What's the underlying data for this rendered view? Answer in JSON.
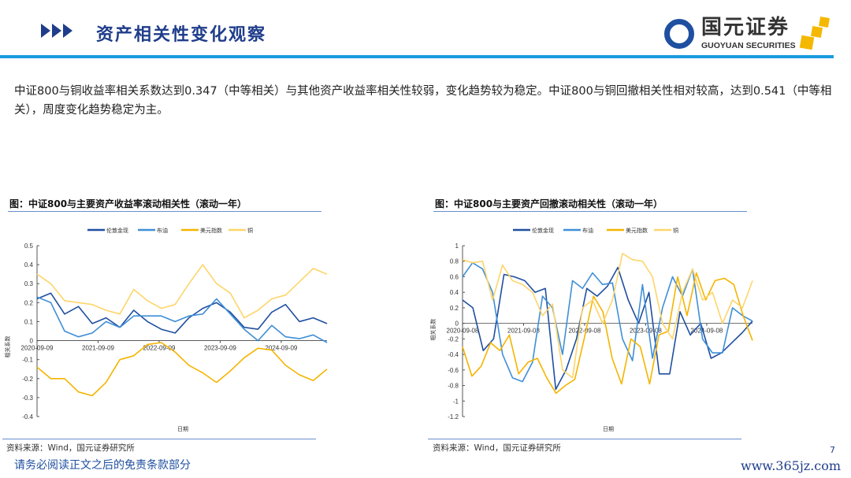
{
  "header": {
    "title": "资产相关性变化观察",
    "logo_cn": "国元证券",
    "logo_en": "GUOYUAN SECURITIES"
  },
  "summary": "中证800与铜收益率相关系数达到0.347（中等相关）与其他资产收益率相关性较弱，变化趋势较为稳定。中证800与铜回撤相关性相对较高，达到0.541（中等相关），周度变化趋势稳定为主。",
  "colors": {
    "gold": "#1f4fa0",
    "brent": "#3f8fd6",
    "usd": "#f5b400",
    "copper": "#fdd56a"
  },
  "chart_data": [
    {
      "type": "line",
      "title": "图：中证800与主要资产收益率滚动相关性（滚动一年）",
      "xlabel": "日期",
      "ylabel": "相关系数",
      "ylim": [
        -0.4,
        0.5
      ],
      "yticks": [
        "0.5",
        "0.4",
        "0.3",
        "0.2",
        "0.1",
        "0",
        "-0.1",
        "-0.2",
        "-0.3",
        "-0.4"
      ],
      "xticks": [
        "2020-09-09",
        "2021-09-09",
        "2022-09-09",
        "2023-09-09",
        "2024-09-09"
      ],
      "legend": [
        "伦敦金现",
        "布油",
        "美元指数",
        "铜"
      ],
      "legend_position": "top",
      "source": "资料来源：Wind，国元证券研究所",
      "series": [
        {
          "name": "伦敦金现",
          "values": [
            0.22,
            0.25,
            0.14,
            0.18,
            0.09,
            0.12,
            0.07,
            0.16,
            0.1,
            0.06,
            0.04,
            0.12,
            0.17,
            0.2,
            0.15,
            0.07,
            0.06,
            0.15,
            0.19,
            0.1,
            0.12,
            0.09
          ]
        },
        {
          "name": "布油",
          "values": [
            0.23,
            0.2,
            0.05,
            0.02,
            0.04,
            0.1,
            0.07,
            0.13,
            0.13,
            0.13,
            0.1,
            0.13,
            0.14,
            0.22,
            0.14,
            0.06,
            0.0,
            0.08,
            0.02,
            0.01,
            0.03,
            -0.01
          ]
        },
        {
          "name": "美元指数",
          "values": [
            -0.14,
            -0.2,
            -0.2,
            -0.27,
            -0.29,
            -0.22,
            -0.1,
            -0.08,
            -0.02,
            -0.01,
            -0.06,
            -0.13,
            -0.17,
            -0.22,
            -0.16,
            -0.09,
            -0.04,
            -0.05,
            -0.13,
            -0.18,
            -0.21,
            -0.15
          ]
        },
        {
          "name": "铜",
          "values": [
            0.35,
            0.3,
            0.21,
            0.2,
            0.19,
            0.16,
            0.14,
            0.27,
            0.21,
            0.17,
            0.19,
            0.3,
            0.4,
            0.3,
            0.25,
            0.12,
            0.16,
            0.22,
            0.24,
            0.31,
            0.38,
            0.35
          ]
        }
      ]
    },
    {
      "type": "line",
      "title": "图：中证800与主要资产回撤滚动相关性（滚动一年）",
      "xlabel": "日期",
      "ylabel": "相关系数",
      "ylim": [
        -1.2,
        1
      ],
      "yticks": [
        "1",
        "0.8",
        "0.6",
        "0.4",
        "0.2",
        "0",
        "-0.2",
        "-0.4",
        "-0.6",
        "-0.8",
        "-1",
        "-1.2"
      ],
      "xticks": [
        "2020-09-08",
        "2021-09-08",
        "2022-09-08",
        "2023-09-08",
        "2024-09-08"
      ],
      "legend": [
        "伦敦金现",
        "布油",
        "美元指数",
        "铜"
      ],
      "legend_position": "top",
      "source": "资料来源：Wind，国元证券研究所",
      "series": [
        {
          "name": "伦敦金现",
          "values": [
            0.3,
            0.2,
            -0.35,
            -0.2,
            0.63,
            0.6,
            0.55,
            0.4,
            0.45,
            -0.85,
            -0.6,
            -0.2,
            0.45,
            0.35,
            0.48,
            0.72,
            0.3,
            0.0,
            0.4,
            -0.65,
            -0.65,
            0.15,
            -0.15,
            0.0,
            -0.45,
            -0.38,
            -0.25,
            -0.12,
            0.03
          ]
        },
        {
          "name": "布油",
          "values": [
            0.6,
            0.78,
            0.7,
            0.4,
            -0.4,
            -0.7,
            -0.75,
            -0.5,
            0.35,
            0.2,
            -0.4,
            0.55,
            0.45,
            0.65,
            0.5,
            0.52,
            -0.2,
            -0.48,
            0.5,
            -0.45,
            0.2,
            0.6,
            0.35,
            0.7,
            -0.2,
            -0.38,
            -0.38,
            0.2,
            0.1,
            0.03
          ]
        },
        {
          "name": "美元指数",
          "values": [
            -0.3,
            -0.68,
            -0.55,
            -0.25,
            -0.35,
            -0.15,
            -0.65,
            -0.5,
            -0.45,
            -0.7,
            -0.9,
            -0.8,
            -0.72,
            -0.2,
            0.35,
            0.15,
            -0.45,
            -0.78,
            -0.2,
            -0.3,
            -0.78,
            -0.15,
            -0.1,
            0.6,
            0.1,
            0.65,
            0.3,
            0.55,
            0.58,
            0.5,
            0.1,
            -0.22
          ]
        },
        {
          "name": "铜",
          "values": [
            0.82,
            0.78,
            0.8,
            0.3,
            0.75,
            0.55,
            0.5,
            0.4,
            0.1,
            0.25,
            -0.6,
            -0.7,
            0.2,
            0.3,
            0.0,
            0.3,
            0.9,
            0.82,
            0.8,
            0.6,
            0.0,
            -0.2,
            0.4,
            0.7,
            0.3,
            0.4,
            0.0,
            0.3,
            0.2,
            0.55
          ]
        }
      ]
    }
  ],
  "footer": {
    "disclaimer": "请务必阅读正文之后的免责条款部分",
    "watermark": "www.365jz.com",
    "page": "7"
  }
}
